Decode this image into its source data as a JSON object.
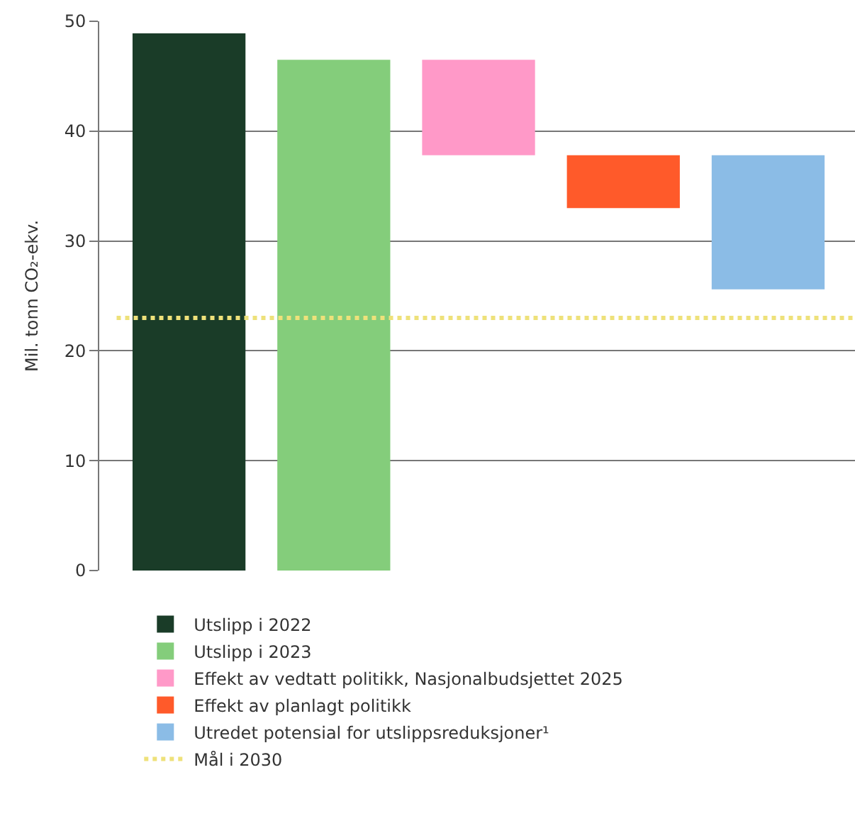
{
  "chart_data": {
    "type": "bar",
    "ylabel": "Mil. tonn CO₂-ekv.",
    "categories": [
      null,
      null,
      null,
      null,
      null
    ],
    "series": [
      {
        "name": "Utslipp i 2022",
        "color": "#1a3c28",
        "values": [
          48.9,
          null,
          null,
          null,
          null
        ]
      },
      {
        "name": "Utslipp i 2023",
        "color": "#84cd7b",
        "values": [
          null,
          46.5,
          null,
          null,
          null
        ]
      },
      {
        "name": "Effekt av vedtatt politikk, Nasjonalbudsjettet 2025",
        "color": "#ff99c8",
        "values": [
          null,
          null,
          8.7,
          null,
          null
        ],
        "base": [
          null,
          null,
          37.8,
          null,
          null
        ]
      },
      {
        "name": "Effekt av planlagt politikk",
        "color": "#ff5a2a",
        "values": [
          null,
          null,
          null,
          4.8,
          null
        ],
        "base": [
          null,
          null,
          null,
          33.0,
          null
        ]
      },
      {
        "name": "Utredet potensial for utslippsreduksjoner¹",
        "color": "#8bbce6",
        "values": [
          null,
          null,
          null,
          null,
          12.2
        ],
        "base": [
          null,
          null,
          null,
          null,
          25.6
        ]
      }
    ],
    "ylim": [
      0,
      50
    ],
    "yticks": [
      0,
      10,
      20,
      30,
      40,
      50
    ],
    "ref_lines": [
      {
        "axis": "y",
        "value": 23.0,
        "label": "Mål i 2030",
        "color": "#eee17a",
        "line_style": "dotted"
      }
    ],
    "grid": "y",
    "legend": "bottom"
  }
}
